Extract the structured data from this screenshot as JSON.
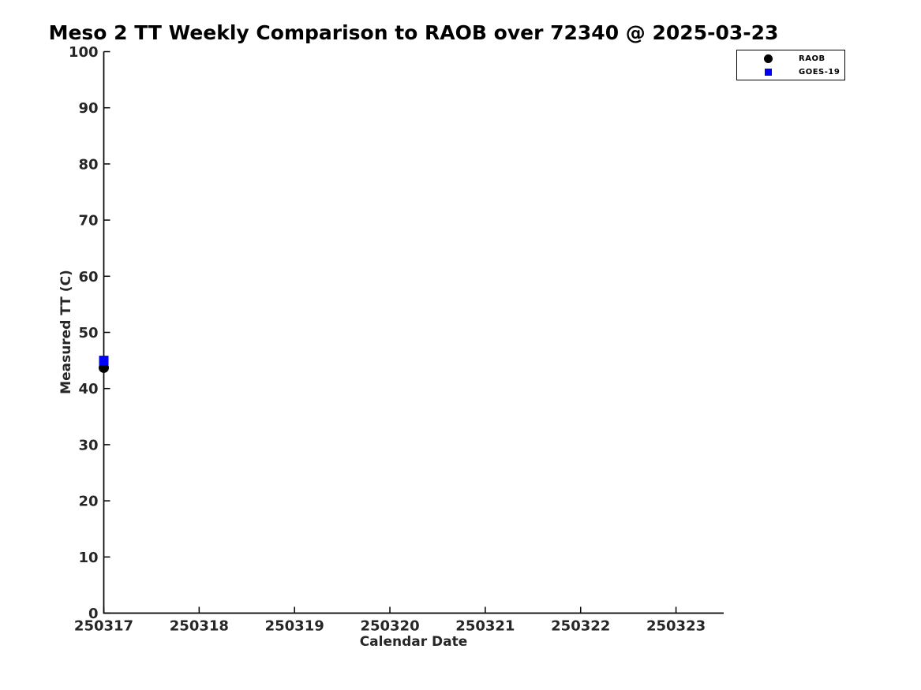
{
  "page": {
    "background": "#ffffff"
  },
  "colors": {
    "axis": "#000000",
    "tick_label": "#262626",
    "title": "#000000",
    "raob": "#000000",
    "goes19": "#0000ff"
  },
  "chart_data": {
    "type": "scatter",
    "title": "Meso 2 TT Weekly Comparison to RAOB over 72340 @ 2025-03-23",
    "xlabel": "Calendar Date",
    "ylabel": "Measured TT (C)",
    "xlim": [
      250317,
      250323.5
    ],
    "ylim": [
      0,
      100
    ],
    "x_tick_values": [
      250317,
      250318,
      250319,
      250320,
      250321,
      250322,
      250323
    ],
    "x_tick_labels": [
      "250317",
      "250318",
      "250319",
      "250320",
      "250321",
      "250322",
      "250323"
    ],
    "y_ticks": [
      0,
      10,
      20,
      30,
      40,
      50,
      60,
      70,
      80,
      90,
      100
    ],
    "grid": false,
    "legend": {
      "position": "top-right-outside",
      "entries": [
        {
          "label": "RAOB",
          "marker": "circle",
          "color": "#000000"
        },
        {
          "label": "GOES-19",
          "marker": "square",
          "color": "#0000ff"
        }
      ]
    },
    "series": [
      {
        "name": "RAOB",
        "marker": "circle",
        "color": "#000000",
        "points": [
          {
            "x": 250317,
            "y": 43.7
          }
        ]
      },
      {
        "name": "GOES-19",
        "marker": "square",
        "color": "#0000ff",
        "points": [
          {
            "x": 250317,
            "y": 45.0
          }
        ]
      }
    ]
  }
}
